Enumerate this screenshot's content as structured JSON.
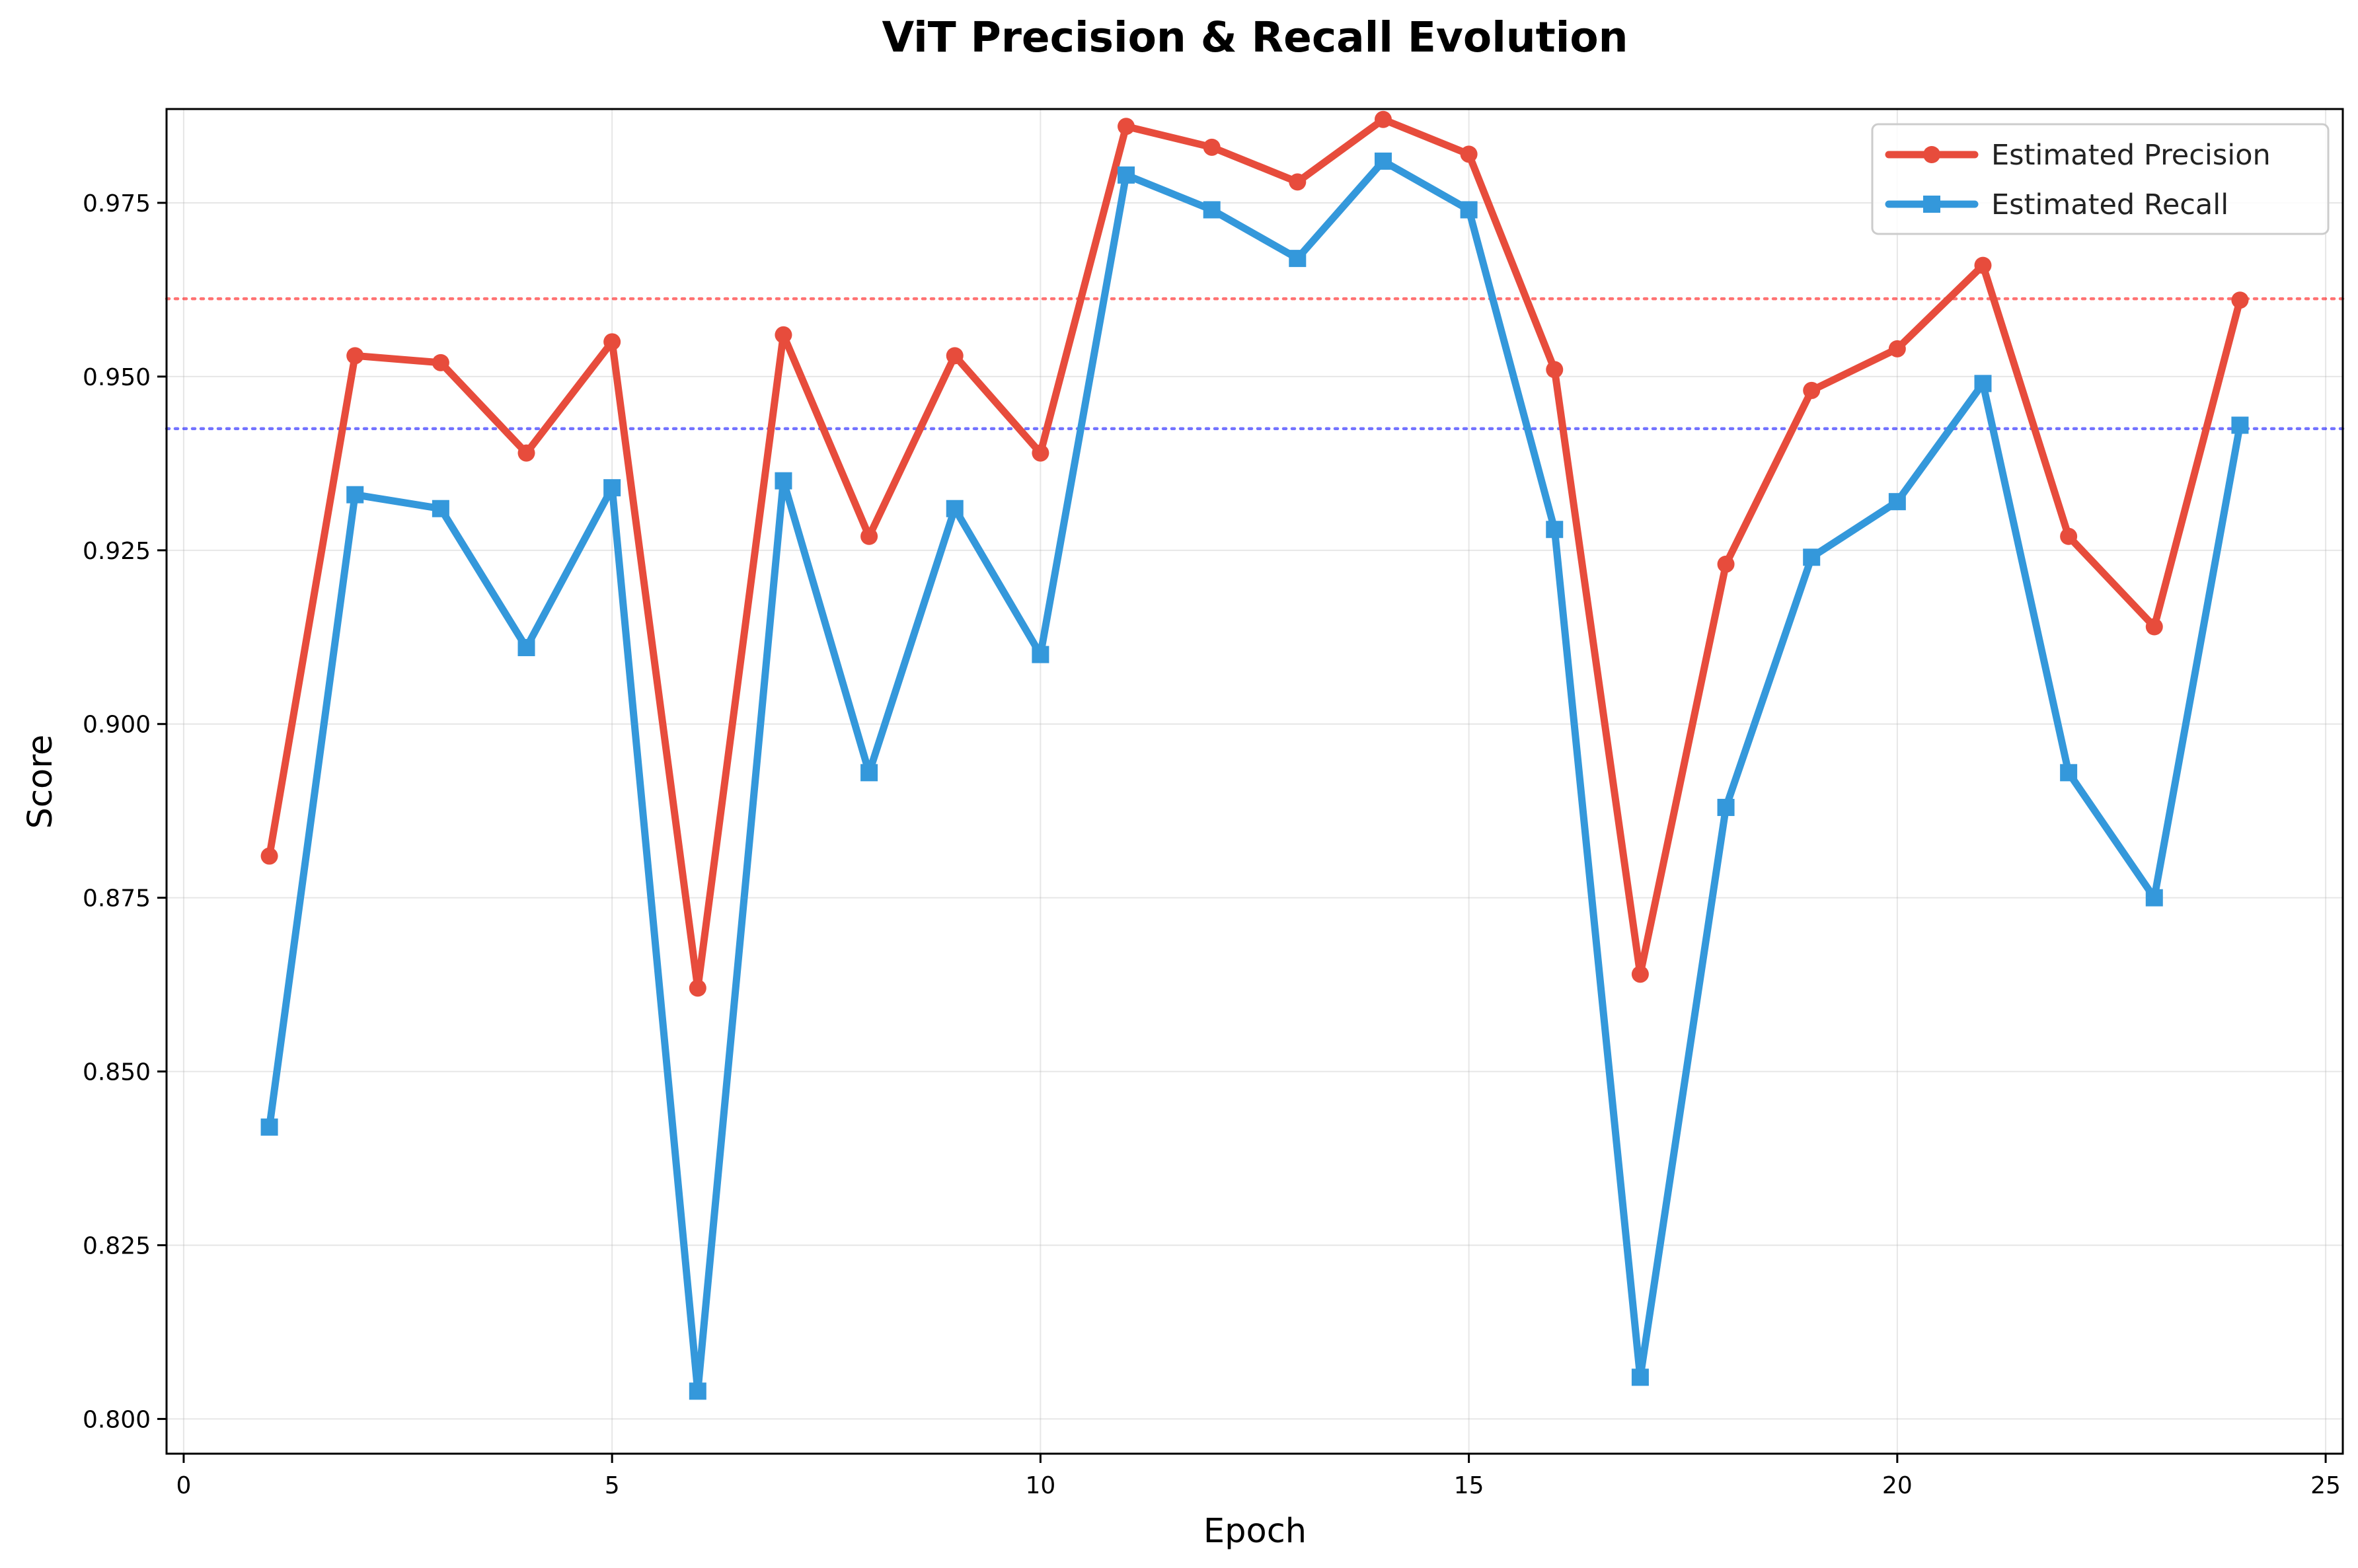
{
  "chart_data": {
    "type": "line",
    "title": "ViT Precision & Recall Evolution",
    "xlabel": "Epoch",
    "ylabel": "Score",
    "xlim": [
      -0.2,
      25.2
    ],
    "ylim": [
      0.795,
      0.9885
    ],
    "xticks": [
      0,
      5,
      10,
      15,
      20,
      25
    ],
    "yticks": [
      0.8,
      0.825,
      0.85,
      0.875,
      0.9,
      0.925,
      0.95,
      0.975
    ],
    "ytick_labels": [
      "0.800",
      "0.825",
      "0.850",
      "0.875",
      "0.900",
      "0.925",
      "0.950",
      "0.975"
    ],
    "grid": true,
    "legend_position": "upper-right",
    "x": [
      1,
      2,
      3,
      4,
      5,
      6,
      7,
      8,
      9,
      10,
      11,
      12,
      13,
      14,
      15,
      16,
      17,
      18,
      19,
      20,
      21,
      22,
      23,
      24
    ],
    "series": [
      {
        "name": "Estimated Precision",
        "color": "#e74c3c",
        "marker": "circle",
        "values": [
          0.881,
          0.953,
          0.952,
          0.939,
          0.955,
          0.862,
          0.956,
          0.927,
          0.953,
          0.939,
          0.986,
          0.983,
          0.978,
          0.987,
          0.982,
          0.951,
          0.864,
          0.923,
          0.948,
          0.954,
          0.966,
          0.927,
          0.914,
          0.961
        ]
      },
      {
        "name": "Estimated Recall",
        "color": "#3498db",
        "marker": "square",
        "values": [
          0.842,
          0.933,
          0.931,
          0.911,
          0.934,
          0.804,
          0.935,
          0.893,
          0.931,
          0.91,
          0.979,
          0.974,
          0.967,
          0.981,
          0.974,
          0.928,
          0.806,
          0.888,
          0.924,
          0.932,
          0.949,
          0.893,
          0.875,
          0.943
        ]
      }
    ],
    "reference_lines": [
      {
        "y": 0.9612,
        "color": "#ff0000",
        "style": "dotted"
      },
      {
        "y": 0.9425,
        "color": "#0000ff",
        "style": "dotted"
      }
    ]
  }
}
